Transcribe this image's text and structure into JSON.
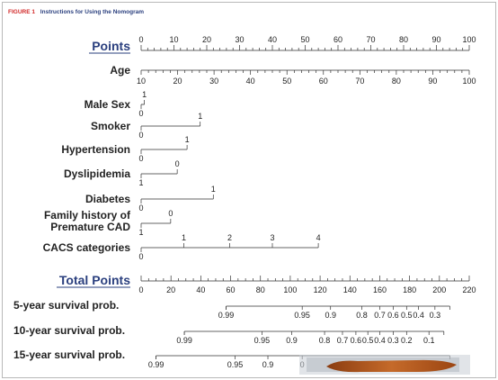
{
  "caption": {
    "figure_label": "FIGURE 1",
    "text": "Instructions for Using the Nomogram"
  },
  "colors": {
    "caption_red": "#d22a2a",
    "caption_text": "#2a3f7e",
    "axis": "#333333",
    "brush_stroke": "#b55a1c"
  },
  "chart_data": {
    "type": "nomogram",
    "title": "",
    "points_axis": {
      "label": "Points",
      "min": 0,
      "max": 100,
      "major_ticks": [
        0,
        10,
        20,
        30,
        40,
        50,
        60,
        70,
        80,
        90,
        100
      ]
    },
    "variables": [
      {
        "label": "Age",
        "min": 10,
        "max": 100,
        "major_ticks": [
          10,
          20,
          30,
          40,
          50,
          60,
          70,
          80,
          90,
          100
        ],
        "points": [
          0,
          100
        ]
      },
      {
        "label": "Male Sex",
        "levels": [
          {
            "value": "0",
            "points": 0
          },
          {
            "value": "1",
            "points": 1
          }
        ]
      },
      {
        "label": "Smoker",
        "levels": [
          {
            "value": "0",
            "points": 0
          },
          {
            "value": "1",
            "points": 18
          }
        ]
      },
      {
        "label": "Hypertension",
        "levels": [
          {
            "value": "0",
            "points": 0
          },
          {
            "value": "1",
            "points": 14
          }
        ]
      },
      {
        "label": "Dyslipidemia",
        "levels": [
          {
            "value": "1",
            "points": 0
          },
          {
            "value": "0",
            "points": 11
          }
        ]
      },
      {
        "label": "Diabetes",
        "levels": [
          {
            "value": "0",
            "points": 0
          },
          {
            "value": "1",
            "points": 22
          }
        ]
      },
      {
        "label_lines": [
          "Family history of",
          "Premature CAD"
        ],
        "levels": [
          {
            "value": "1",
            "points": 0
          },
          {
            "value": "0",
            "points": 9
          }
        ]
      },
      {
        "label": "CACS categories",
        "levels": [
          {
            "value": "0",
            "points": 0
          },
          {
            "value": "1",
            "points": 13
          },
          {
            "value": "2",
            "points": 27
          },
          {
            "value": "3",
            "points": 40
          },
          {
            "value": "4",
            "points": 54
          }
        ]
      }
    ],
    "total_points_axis": {
      "label": "Total Points",
      "min": 0,
      "max": 220,
      "major_ticks": [
        0,
        20,
        40,
        60,
        80,
        100,
        120,
        140,
        160,
        180,
        200,
        220
      ]
    },
    "survival_axes": [
      {
        "label": "5-year survival prob.",
        "range_total_points": [
          57,
          207
        ],
        "ticks": [
          {
            "label": "0.99",
            "total_points": 57
          },
          {
            "label": "0.95",
            "total_points": 108
          },
          {
            "label": "0.9",
            "total_points": 127
          },
          {
            "label": "0.8",
            "total_points": 148
          },
          {
            "label": "0.7",
            "total_points": 160
          },
          {
            "label": "0.6",
            "total_points": 169
          },
          {
            "label": "0.5",
            "total_points": 178
          },
          {
            "label": "0.4",
            "total_points": 186
          },
          {
            "label": "0.3",
            "total_points": 197
          }
        ]
      },
      {
        "label": "10-year survival prob.",
        "range_total_points": [
          29,
          203
        ],
        "ticks": [
          {
            "label": "0.99",
            "total_points": 29
          },
          {
            "label": "0.95",
            "total_points": 81
          },
          {
            "label": "0.9",
            "total_points": 101
          },
          {
            "label": "0.8",
            "total_points": 123
          },
          {
            "label": "0.7",
            "total_points": 135
          },
          {
            "label": "0.6",
            "total_points": 144
          },
          {
            "label": "0.5",
            "total_points": 152
          },
          {
            "label": "0.4",
            "total_points": 160
          },
          {
            "label": "0.3",
            "total_points": 169
          },
          {
            "label": "0.2",
            "total_points": 178
          },
          {
            "label": "0.1",
            "total_points": 193
          }
        ]
      },
      {
        "label": "15-year survival prob.",
        "range_total_points": [
          10,
          207
        ],
        "ticks": [
          {
            "label": "0.99",
            "total_points": 10
          },
          {
            "label": "0.95",
            "total_points": 63
          },
          {
            "label": "0.9",
            "total_points": 85
          },
          {
            "label": "0",
            "total_points": 108
          }
        ]
      }
    ]
  }
}
